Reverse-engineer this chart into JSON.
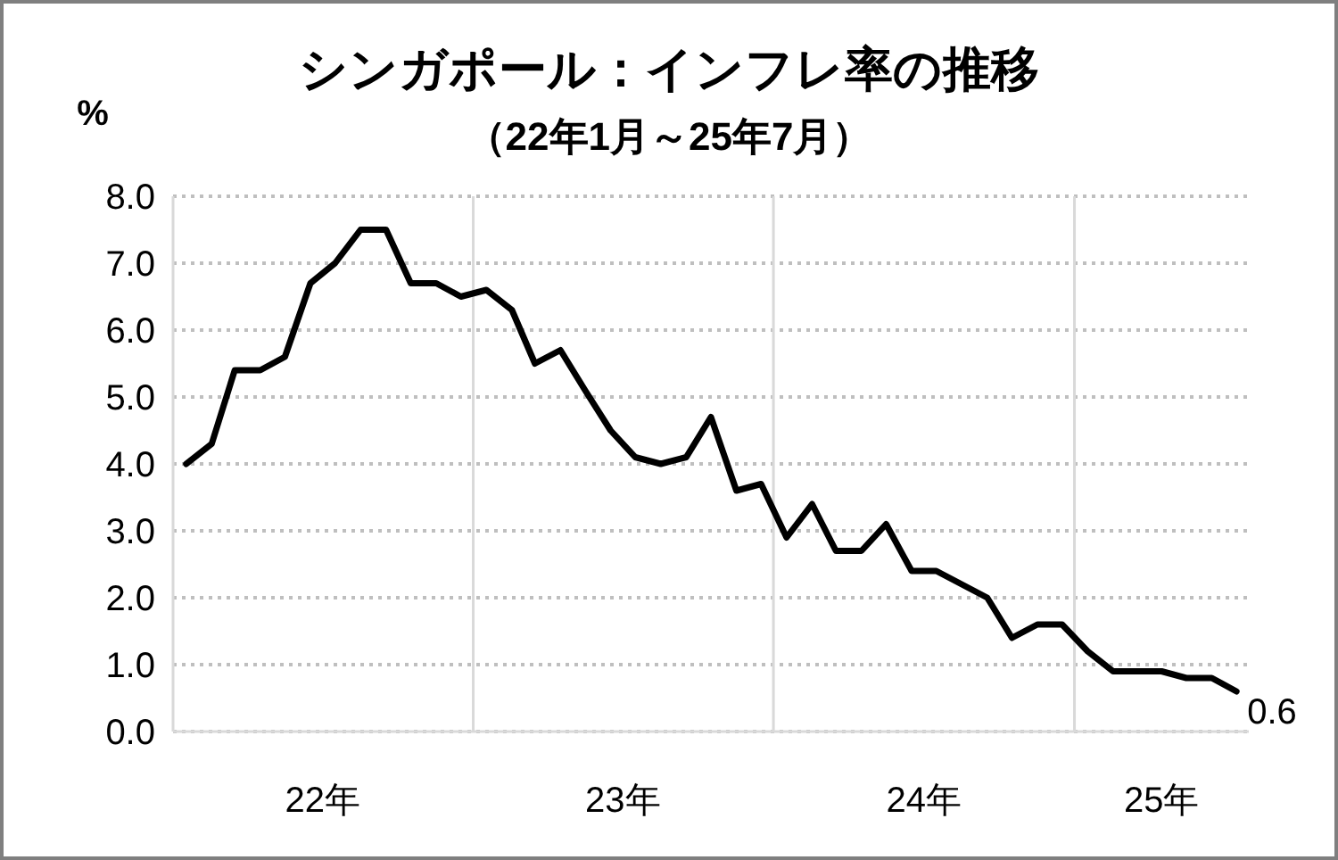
{
  "chart_data": {
    "type": "line",
    "title": "シンガポール：インフレ率の推移",
    "subtitle": "（22年1月～25年7月）",
    "ylabel": "%",
    "x": [
      "2022-01",
      "2022-02",
      "2022-03",
      "2022-04",
      "2022-05",
      "2022-06",
      "2022-07",
      "2022-08",
      "2022-09",
      "2022-10",
      "2022-11",
      "2022-12",
      "2023-01",
      "2023-02",
      "2023-03",
      "2023-04",
      "2023-05",
      "2023-06",
      "2023-07",
      "2023-08",
      "2023-09",
      "2023-10",
      "2023-11",
      "2023-12",
      "2024-01",
      "2024-02",
      "2024-03",
      "2024-04",
      "2024-05",
      "2024-06",
      "2024-07",
      "2024-08",
      "2024-09",
      "2024-10",
      "2024-11",
      "2024-12",
      "2025-01",
      "2025-02",
      "2025-03",
      "2025-04",
      "2025-05",
      "2025-06",
      "2025-07"
    ],
    "series": [
      {
        "color": "#000000",
        "values": [
          4.0,
          4.3,
          5.4,
          5.4,
          5.6,
          6.7,
          7.0,
          7.5,
          7.5,
          6.7,
          6.7,
          6.5,
          6.6,
          6.3,
          5.5,
          5.7,
          5.1,
          4.5,
          4.1,
          4.0,
          4.1,
          4.7,
          3.6,
          3.7,
          2.9,
          3.4,
          2.7,
          2.7,
          3.1,
          2.4,
          2.4,
          2.2,
          2.0,
          1.4,
          1.6,
          1.6,
          1.2,
          0.9,
          0.9,
          0.9,
          0.8,
          0.8,
          0.6
        ]
      }
    ],
    "xlim": [
      "2021-12-16",
      "2025-07-16"
    ],
    "xticks": [
      {
        "value": "2022-06-16",
        "label": "22年"
      },
      {
        "value": "2023-06-16",
        "label": "23年"
      },
      {
        "value": "2024-06-16",
        "label": "24年"
      },
      {
        "value": "2025-04-01",
        "label": "25年"
      }
    ],
    "ylim": [
      0,
      8
    ],
    "yticks": [
      {
        "value": 0,
        "label": "0.0"
      },
      {
        "value": 1,
        "label": "1.0"
      },
      {
        "value": 2,
        "label": "2.0"
      },
      {
        "value": 3,
        "label": "3.0"
      },
      {
        "value": 4,
        "label": "4.0"
      },
      {
        "value": 5,
        "label": "5.0"
      },
      {
        "value": 6,
        "label": "6.0"
      },
      {
        "value": 7,
        "label": "7.0"
      },
      {
        "value": 8,
        "label": "8.0"
      }
    ],
    "grid": "y",
    "marker": "none",
    "line_style": "solid",
    "ref_lines": [
      {
        "axis": "x",
        "value": "2022-12-16",
        "color": "#d9d9d9"
      },
      {
        "axis": "x",
        "value": "2023-12-16",
        "color": "#d9d9d9"
      },
      {
        "axis": "x",
        "value": "2024-12-16",
        "color": "#d9d9d9"
      }
    ],
    "annotations": [
      {
        "text": "0.6",
        "x": "2025-07",
        "y": 0.6
      }
    ]
  }
}
